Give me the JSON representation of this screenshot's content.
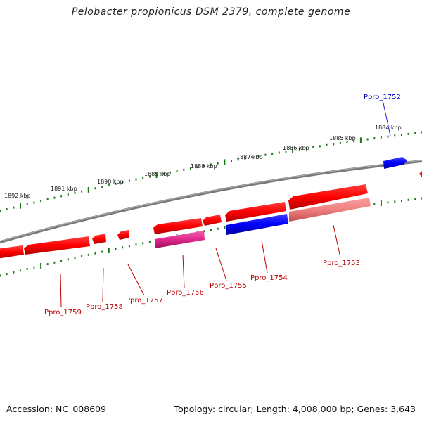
{
  "header": {
    "title": "Pelobacter propionicus DSM 2379, complete genome"
  },
  "footer": {
    "accession": "Accession: NC_008609",
    "summary": "Topology: circular; Length: 4,008,000 bp; Genes: 3,643"
  },
  "colors": {
    "backbone": "#808080",
    "ticks": "#1a7a1a",
    "forward_gene": "#ff0000",
    "reverse_gene_label": "#c00000",
    "blue_gene": "#0000ff",
    "magenta_gene": "#e0288c",
    "pink_gene": "#f08080",
    "blue_label": "#0000c0"
  },
  "ruler": {
    "labels": [
      "1884 kbp",
      "1885 kbp",
      "1886 kbp",
      "1887 kbp",
      "1888 kbp",
      "1889 kbp",
      "1890 kbp",
      "1891 kbp",
      "1892 kbp"
    ]
  },
  "genes": [
    {
      "label": "Ppro_1752",
      "color": "blue"
    },
    {
      "label": "Ppro_1753",
      "color": "red"
    },
    {
      "label": "Ppro_1754",
      "color": "red"
    },
    {
      "label": "Ppro_1755",
      "color": "red"
    },
    {
      "label": "Ppro_1756",
      "color": "red"
    },
    {
      "label": "Ppro_1757",
      "color": "red"
    },
    {
      "label": "Ppro_1758",
      "color": "red"
    },
    {
      "label": "Ppro_1759",
      "color": "red"
    }
  ]
}
